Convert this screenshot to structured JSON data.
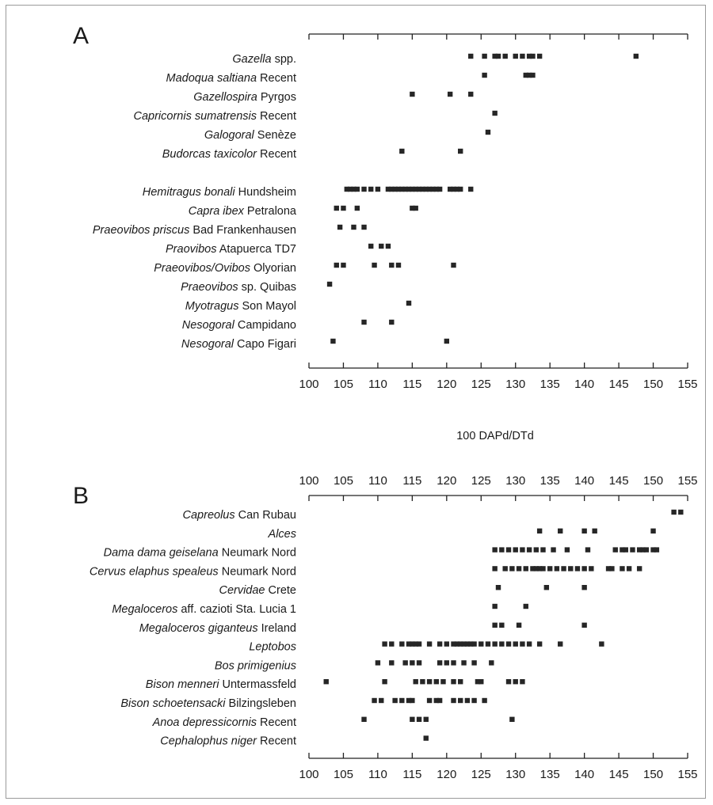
{
  "chart_data": [
    {
      "panel": "A",
      "type": "scatter",
      "xlabel": "100 DAPd/DTd",
      "xlim": [
        100,
        155
      ],
      "tick_values": [
        100,
        105,
        110,
        115,
        120,
        125,
        130,
        135,
        140,
        145,
        150,
        155
      ],
      "tick_labels": [
        "100",
        "105",
        "110",
        "115",
        "120",
        "125",
        "130",
        "135",
        "140",
        "145",
        "150",
        "155"
      ],
      "rows": [
        {
          "genus": "Gazella",
          "site": " spp.",
          "group": 1,
          "values": [
            123.5,
            125.5,
            127.0,
            127.5,
            128.5,
            130.0,
            131.0,
            132.0,
            132.5,
            133.5,
            147.5
          ]
        },
        {
          "genus": "Madoqua saltiana",
          "site": " Recent",
          "group": 1,
          "values": [
            125.5,
            131.5,
            132.0,
            132.5
          ]
        },
        {
          "genus": "Gazellospira",
          "site": " Pyrgos",
          "group": 1,
          "values": [
            115.0,
            120.5,
            123.5
          ]
        },
        {
          "genus": "Capricornis sumatrensis",
          "site": " Recent",
          "group": 1,
          "values": [
            127.0
          ]
        },
        {
          "genus": "Galogoral",
          "site": " Senèze",
          "group": 1,
          "values": [
            126.0
          ]
        },
        {
          "genus": "Budorcas taxicolor",
          "site": " Recent",
          "group": 1,
          "values": [
            113.5,
            122.0
          ]
        },
        {
          "genus": "Hemitragus bonali",
          "site": " Hundsheim",
          "group": 2,
          "values": [
            105.5,
            106.0,
            106.5,
            107.0,
            108.0,
            109.0,
            110.0,
            111.5,
            112.0,
            112.5,
            113.0,
            113.5,
            114.0,
            114.5,
            115.0,
            115.5,
            116.0,
            116.5,
            117.0,
            117.5,
            118.0,
            118.5,
            119.0,
            120.5,
            121.0,
            121.5,
            122.0,
            123.5
          ]
        },
        {
          "genus": "Capra ibex",
          "site": " Petralona",
          "group": 2,
          "values": [
            104.0,
            105.0,
            107.0,
            115.0,
            115.5
          ]
        },
        {
          "genus": "Praeovibos priscus",
          "site": "  Bad Frankenhausen",
          "group": 2,
          "values": [
            104.5,
            106.5,
            108.0
          ]
        },
        {
          "genus": "Praovibos",
          "site": " Atapuerca TD7",
          "group": 2,
          "values": [
            109.0,
            110.5,
            111.5
          ]
        },
        {
          "genus": "Praeovibos/Ovibos",
          "site": " Olyorian",
          "group": 2,
          "values": [
            104.0,
            105.0,
            109.5,
            112.0,
            113.0,
            121.0
          ]
        },
        {
          "genus": "Praeovibos",
          "site": " sp. Quibas",
          "group": 2,
          "values": [
            103.0
          ]
        },
        {
          "genus": "Myotragus",
          "site": " Son Mayol",
          "group": 2,
          "values": [
            114.5
          ]
        },
        {
          "genus": "Nesogoral",
          "site": " Campidano",
          "group": 2,
          "values": [
            108.0,
            112.0
          ]
        },
        {
          "genus": "Nesogoral",
          "site": " Capo Figari",
          "group": 2,
          "values": [
            103.5,
            120.0
          ]
        }
      ]
    },
    {
      "panel": "B",
      "type": "scatter",
      "xlabel": "",
      "xlim": [
        100,
        155
      ],
      "tick_values": [
        100,
        105,
        110,
        115,
        120,
        125,
        130,
        135,
        140,
        145,
        150,
        155
      ],
      "tick_labels": [
        "100",
        "105",
        "110",
        "115",
        "120",
        "125",
        "130",
        "135",
        "140",
        "145",
        "150",
        "155"
      ],
      "rows": [
        {
          "genus": "Capreolus",
          "site": " Can Rubau",
          "values": [
            153.0,
            154.0
          ]
        },
        {
          "genus": "Alces",
          "site": "",
          "values": [
            133.5,
            136.5,
            140.0,
            141.5,
            150.0
          ]
        },
        {
          "genus": "Dama dama geiselana",
          "site": " Neumark Nord",
          "values": [
            127.0,
            128.0,
            129.0,
            130.0,
            131.0,
            132.0,
            133.0,
            134.0,
            135.5,
            137.5,
            140.5,
            144.5,
            145.5,
            146.0,
            147.0,
            148.0,
            148.5,
            149.0,
            150.0,
            150.5
          ]
        },
        {
          "genus": "Cervus elaphus spealeus",
          "site": " Neumark Nord",
          "values": [
            127.0,
            128.5,
            129.5,
            130.5,
            131.5,
            132.5,
            133.0,
            133.5,
            134.0,
            135.0,
            136.0,
            137.0,
            138.0,
            139.0,
            140.0,
            141.0,
            143.5,
            144.0,
            145.5,
            146.5,
            148.0
          ]
        },
        {
          "genus": "Cervidae",
          "site": " Crete",
          "values": [
            127.5,
            134.5,
            140.0
          ]
        },
        {
          "genus": "Megaloceros",
          "site": " aff. cazioti Sta. Lucia 1",
          "values": [
            127.0,
            131.5
          ]
        },
        {
          "genus": "Megaloceros giganteus",
          "site": " Ireland",
          "values": [
            127.0,
            128.0,
            130.5,
            140.0
          ]
        },
        {
          "genus": "Leptobos",
          "site": "",
          "values": [
            111.0,
            112.0,
            113.5,
            114.5,
            115.0,
            115.5,
            116.0,
            117.5,
            119.0,
            120.0,
            121.0,
            121.5,
            122.0,
            122.5,
            123.0,
            123.5,
            124.0,
            125.0,
            126.0,
            127.0,
            128.0,
            129.0,
            130.0,
            131.0,
            132.0,
            133.5,
            136.5,
            142.5
          ]
        },
        {
          "genus": "Bos primigenius",
          "site": "",
          "values": [
            110.0,
            112.0,
            114.0,
            115.0,
            116.0,
            119.0,
            120.0,
            121.0,
            122.5,
            124.0,
            126.5
          ]
        },
        {
          "genus": "Bison menneri",
          "site": " Untermassfeld",
          "values": [
            102.5,
            111.0,
            115.5,
            116.5,
            117.5,
            118.5,
            119.5,
            121.0,
            122.0,
            124.5,
            125.0,
            129.0,
            130.0,
            131.0
          ]
        },
        {
          "genus": "Bison schoetensacki",
          "site": " Bilzingsleben",
          "values": [
            109.5,
            110.5,
            112.5,
            113.5,
            114.5,
            115.0,
            117.5,
            118.5,
            119.0,
            121.0,
            122.0,
            123.0,
            124.0,
            125.5
          ]
        },
        {
          "genus": "Anoa depressicornis",
          "site": " Recent",
          "values": [
            108.0,
            115.0,
            116.0,
            117.0,
            129.5
          ]
        },
        {
          "genus": "Cephalophus niger",
          "site": " Recent",
          "values": [
            117.0
          ]
        }
      ]
    }
  ]
}
